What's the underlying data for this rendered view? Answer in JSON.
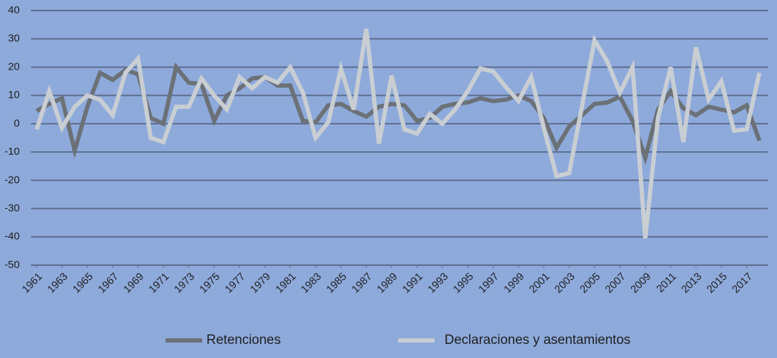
{
  "chart_data": {
    "type": "line",
    "x": [
      1961,
      1962,
      1963,
      1964,
      1965,
      1966,
      1967,
      1968,
      1969,
      1970,
      1971,
      1972,
      1973,
      1974,
      1975,
      1976,
      1977,
      1978,
      1979,
      1980,
      1981,
      1982,
      1983,
      1984,
      1985,
      1986,
      1987,
      1988,
      1989,
      1990,
      1991,
      1992,
      1993,
      1994,
      1995,
      1996,
      1997,
      1998,
      1999,
      2000,
      2001,
      2002,
      2003,
      2004,
      2005,
      2006,
      2007,
      2008,
      2009,
      2010,
      2011,
      2012,
      2013,
      2014,
      2015,
      2016,
      2017,
      2018
    ],
    "series": [
      {
        "name": "Retenciones",
        "color": "#6b7177",
        "values": [
          4.5,
          7,
          9,
          -9.5,
          6,
          18,
          15.5,
          19,
          17.5,
          2,
          0,
          20,
          14.5,
          14,
          1,
          10,
          12.5,
          16,
          16.5,
          13.5,
          13.5,
          1,
          0.5,
          6.5,
          7,
          4.5,
          2.5,
          6,
          7,
          6.5,
          1,
          2,
          6,
          7,
          7.5,
          9,
          8,
          8.5,
          10,
          8,
          2,
          -8.5,
          -1,
          3,
          7,
          7.5,
          9.5,
          1,
          -12,
          5,
          11.5,
          5.5,
          3,
          6,
          5,
          4,
          6.5,
          -6
        ]
      },
      {
        "name": "Declaraciones y asentamientos",
        "color": "#c9ced3",
        "values": [
          -2,
          11.5,
          -1.5,
          6,
          10,
          8.5,
          3,
          18,
          23,
          -5,
          -6.5,
          6,
          6,
          16,
          10,
          5,
          16.5,
          12.5,
          16.5,
          14.5,
          20,
          11,
          -5,
          0.5,
          19.5,
          5,
          33.5,
          -7,
          17,
          -2,
          -3.5,
          3.5,
          0,
          5,
          11.5,
          19.5,
          18.5,
          13,
          8,
          16.5,
          -1.5,
          -18.5,
          -17.5,
          6,
          29.5,
          22,
          11,
          20,
          -40.5,
          2,
          20,
          -6.5,
          27,
          8.5,
          15,
          -2.5,
          -2,
          18
        ]
      }
    ],
    "xlim": [
      1961,
      2018
    ],
    "xticks": [
      1961,
      1963,
      1965,
      1967,
      1969,
      1971,
      1973,
      1975,
      1977,
      1979,
      1981,
      1983,
      1985,
      1987,
      1989,
      1991,
      1993,
      1995,
      1997,
      1999,
      2001,
      2003,
      2005,
      2007,
      2009,
      2011,
      2013,
      2015,
      2017
    ],
    "ylim": [
      -50,
      40
    ],
    "yticks": [
      -50,
      -40,
      -30,
      -20,
      -10,
      0,
      10,
      20,
      30,
      40
    ],
    "grid": true,
    "legend": "bottom"
  }
}
